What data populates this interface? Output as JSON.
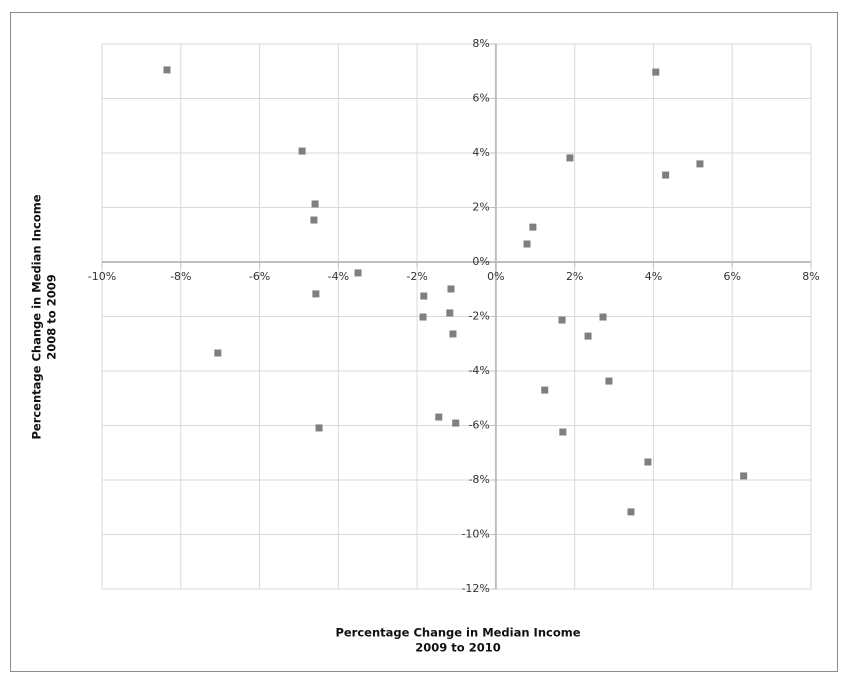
{
  "chart_data": {
    "type": "scatter",
    "xlabel": [
      "Percentage Change in Median Income",
      "2009 to 2010"
    ],
    "ylabel": [
      "Percentage Change in Median Income",
      "2008 to 2009"
    ],
    "xlim": [
      -10,
      8
    ],
    "ylim": [
      -12,
      8
    ],
    "xticks": [
      {
        "value": -10,
        "label": "-10%"
      },
      {
        "value": -8,
        "label": "-8%"
      },
      {
        "value": -6,
        "label": "-6%"
      },
      {
        "value": -4,
        "label": "-4%"
      },
      {
        "value": -2,
        "label": "-2%"
      },
      {
        "value": 0,
        "label": "0%"
      },
      {
        "value": 2,
        "label": "2%"
      },
      {
        "value": 4,
        "label": "4%"
      },
      {
        "value": 6,
        "label": "6%"
      },
      {
        "value": 8,
        "label": "8%"
      }
    ],
    "yticks": [
      {
        "value": 8,
        "label": "8%"
      },
      {
        "value": 6,
        "label": "6%"
      },
      {
        "value": 4,
        "label": "4%"
      },
      {
        "value": 2,
        "label": "2%"
      },
      {
        "value": 0,
        "label": "0%"
      },
      {
        "value": -2,
        "label": "-2%"
      },
      {
        "value": -4,
        "label": "-4%"
      },
      {
        "value": -6,
        "label": "-6%"
      },
      {
        "value": -8,
        "label": "-8%"
      },
      {
        "value": -10,
        "label": "-10%"
      },
      {
        "value": -12,
        "label": "-12%"
      }
    ],
    "grid": true,
    "color": "#7f7f7f",
    "x": [
      -8.35,
      -4.92,
      -4.59,
      -4.62,
      -3.5,
      -4.57,
      -7.06,
      -4.49,
      -1.83,
      -1.85,
      -1.14,
      -1.17,
      -1.09,
      -1.45,
      -1.02,
      0.79,
      0.94,
      1.88,
      4.06,
      4.31,
      5.18,
      1.68,
      2.72,
      2.34,
      1.24,
      2.87,
      1.7,
      3.86,
      6.29,
      3.43
    ],
    "values": [
      7.05,
      4.07,
      2.13,
      1.54,
      -0.4,
      -1.17,
      -3.34,
      -6.09,
      -1.25,
      -2.02,
      -0.99,
      -1.87,
      -2.64,
      -5.69,
      -5.91,
      0.66,
      1.28,
      3.82,
      6.97,
      3.19,
      3.6,
      -2.13,
      -2.02,
      -2.72,
      -4.7,
      -4.37,
      -6.24,
      -7.34,
      -7.85,
      -9.17
    ]
  }
}
